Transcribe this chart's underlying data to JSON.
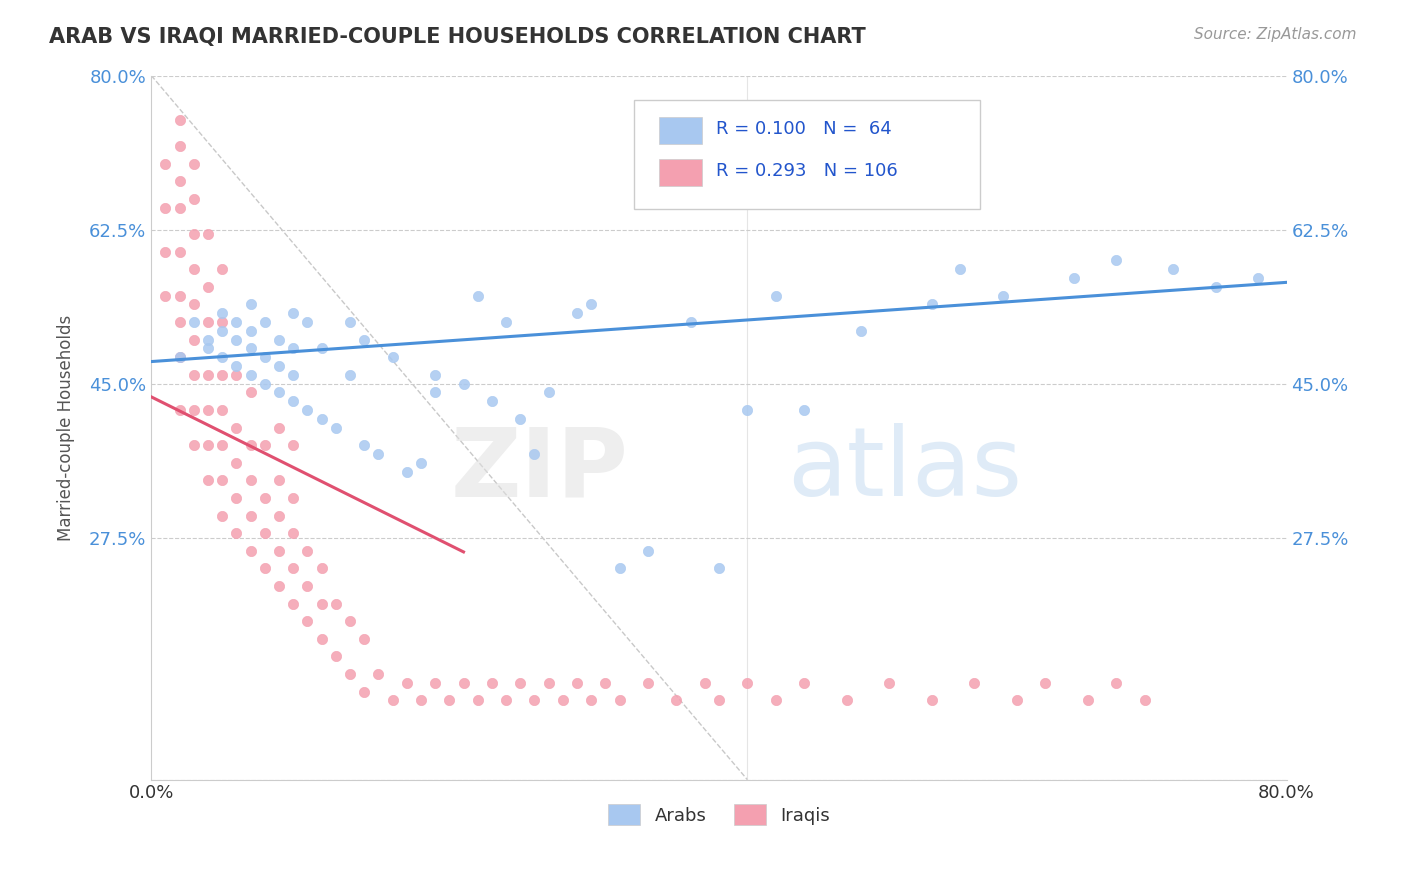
{
  "title": "ARAB VS IRAQI MARRIED-COUPLE HOUSEHOLDS CORRELATION CHART",
  "source_text": "Source: ZipAtlas.com",
  "ylabel": "Married-couple Households",
  "xlim": [
    0.0,
    0.8
  ],
  "ylim": [
    0.0,
    0.8
  ],
  "arab_R": 0.1,
  "arab_N": 64,
  "iraqi_R": 0.293,
  "iraqi_N": 106,
  "arab_color": "#a8c8f0",
  "iraqi_color": "#f4a0b0",
  "arab_line_color": "#4a90d9",
  "iraqi_line_color": "#e05070",
  "legend_R_color": "#2255cc",
  "arab_x": [
    0.02,
    0.03,
    0.04,
    0.04,
    0.05,
    0.05,
    0.05,
    0.06,
    0.06,
    0.06,
    0.07,
    0.07,
    0.07,
    0.07,
    0.08,
    0.08,
    0.08,
    0.09,
    0.09,
    0.09,
    0.1,
    0.1,
    0.1,
    0.1,
    0.11,
    0.11,
    0.12,
    0.12,
    0.13,
    0.14,
    0.14,
    0.15,
    0.15,
    0.16,
    0.17,
    0.18,
    0.19,
    0.2,
    0.2,
    0.22,
    0.23,
    0.24,
    0.25,
    0.26,
    0.27,
    0.28,
    0.3,
    0.31,
    0.33,
    0.35,
    0.38,
    0.4,
    0.42,
    0.44,
    0.46,
    0.5,
    0.55,
    0.57,
    0.6,
    0.65,
    0.68,
    0.72,
    0.75,
    0.78
  ],
  "arab_y": [
    0.48,
    0.52,
    0.49,
    0.5,
    0.48,
    0.51,
    0.53,
    0.47,
    0.5,
    0.52,
    0.46,
    0.49,
    0.51,
    0.54,
    0.45,
    0.48,
    0.52,
    0.44,
    0.47,
    0.5,
    0.43,
    0.46,
    0.49,
    0.53,
    0.42,
    0.52,
    0.41,
    0.49,
    0.4,
    0.46,
    0.52,
    0.38,
    0.5,
    0.37,
    0.48,
    0.35,
    0.36,
    0.44,
    0.46,
    0.45,
    0.55,
    0.43,
    0.52,
    0.41,
    0.37,
    0.44,
    0.53,
    0.54,
    0.24,
    0.26,
    0.52,
    0.24,
    0.42,
    0.55,
    0.42,
    0.51,
    0.54,
    0.58,
    0.55,
    0.57,
    0.59,
    0.58,
    0.56,
    0.57
  ],
  "iraqi_x": [
    0.01,
    0.01,
    0.01,
    0.01,
    0.02,
    0.02,
    0.02,
    0.02,
    0.02,
    0.02,
    0.02,
    0.02,
    0.02,
    0.03,
    0.03,
    0.03,
    0.03,
    0.03,
    0.03,
    0.03,
    0.03,
    0.03,
    0.04,
    0.04,
    0.04,
    0.04,
    0.04,
    0.04,
    0.04,
    0.05,
    0.05,
    0.05,
    0.05,
    0.05,
    0.05,
    0.05,
    0.06,
    0.06,
    0.06,
    0.06,
    0.06,
    0.07,
    0.07,
    0.07,
    0.07,
    0.07,
    0.08,
    0.08,
    0.08,
    0.08,
    0.09,
    0.09,
    0.09,
    0.09,
    0.09,
    0.1,
    0.1,
    0.1,
    0.1,
    0.1,
    0.11,
    0.11,
    0.11,
    0.12,
    0.12,
    0.12,
    0.13,
    0.13,
    0.14,
    0.14,
    0.15,
    0.15,
    0.16,
    0.17,
    0.18,
    0.19,
    0.2,
    0.21,
    0.22,
    0.23,
    0.24,
    0.25,
    0.26,
    0.27,
    0.28,
    0.29,
    0.3,
    0.31,
    0.32,
    0.33,
    0.35,
    0.37,
    0.39,
    0.4,
    0.42,
    0.44,
    0.46,
    0.49,
    0.52,
    0.55,
    0.58,
    0.61,
    0.63,
    0.66,
    0.68,
    0.7
  ],
  "iraqi_y": [
    0.55,
    0.6,
    0.65,
    0.7,
    0.42,
    0.48,
    0.52,
    0.55,
    0.6,
    0.65,
    0.68,
    0.72,
    0.75,
    0.38,
    0.42,
    0.46,
    0.5,
    0.54,
    0.58,
    0.62,
    0.66,
    0.7,
    0.34,
    0.38,
    0.42,
    0.46,
    0.52,
    0.56,
    0.62,
    0.3,
    0.34,
    0.38,
    0.42,
    0.46,
    0.52,
    0.58,
    0.28,
    0.32,
    0.36,
    0.4,
    0.46,
    0.26,
    0.3,
    0.34,
    0.38,
    0.44,
    0.24,
    0.28,
    0.32,
    0.38,
    0.22,
    0.26,
    0.3,
    0.34,
    0.4,
    0.2,
    0.24,
    0.28,
    0.32,
    0.38,
    0.18,
    0.22,
    0.26,
    0.16,
    0.2,
    0.24,
    0.14,
    0.2,
    0.12,
    0.18,
    0.1,
    0.16,
    0.12,
    0.09,
    0.11,
    0.09,
    0.11,
    0.09,
    0.11,
    0.09,
    0.11,
    0.09,
    0.11,
    0.09,
    0.11,
    0.09,
    0.11,
    0.09,
    0.11,
    0.09,
    0.11,
    0.09,
    0.11,
    0.09,
    0.11,
    0.09,
    0.11,
    0.09,
    0.11,
    0.09,
    0.11,
    0.09,
    0.11,
    0.09,
    0.11,
    0.09
  ],
  "ytick_positions": [
    0.275,
    0.45,
    0.625,
    0.8
  ],
  "ytick_labels": [
    "27.5%",
    "45.0%",
    "62.5%",
    "80.0%"
  ]
}
